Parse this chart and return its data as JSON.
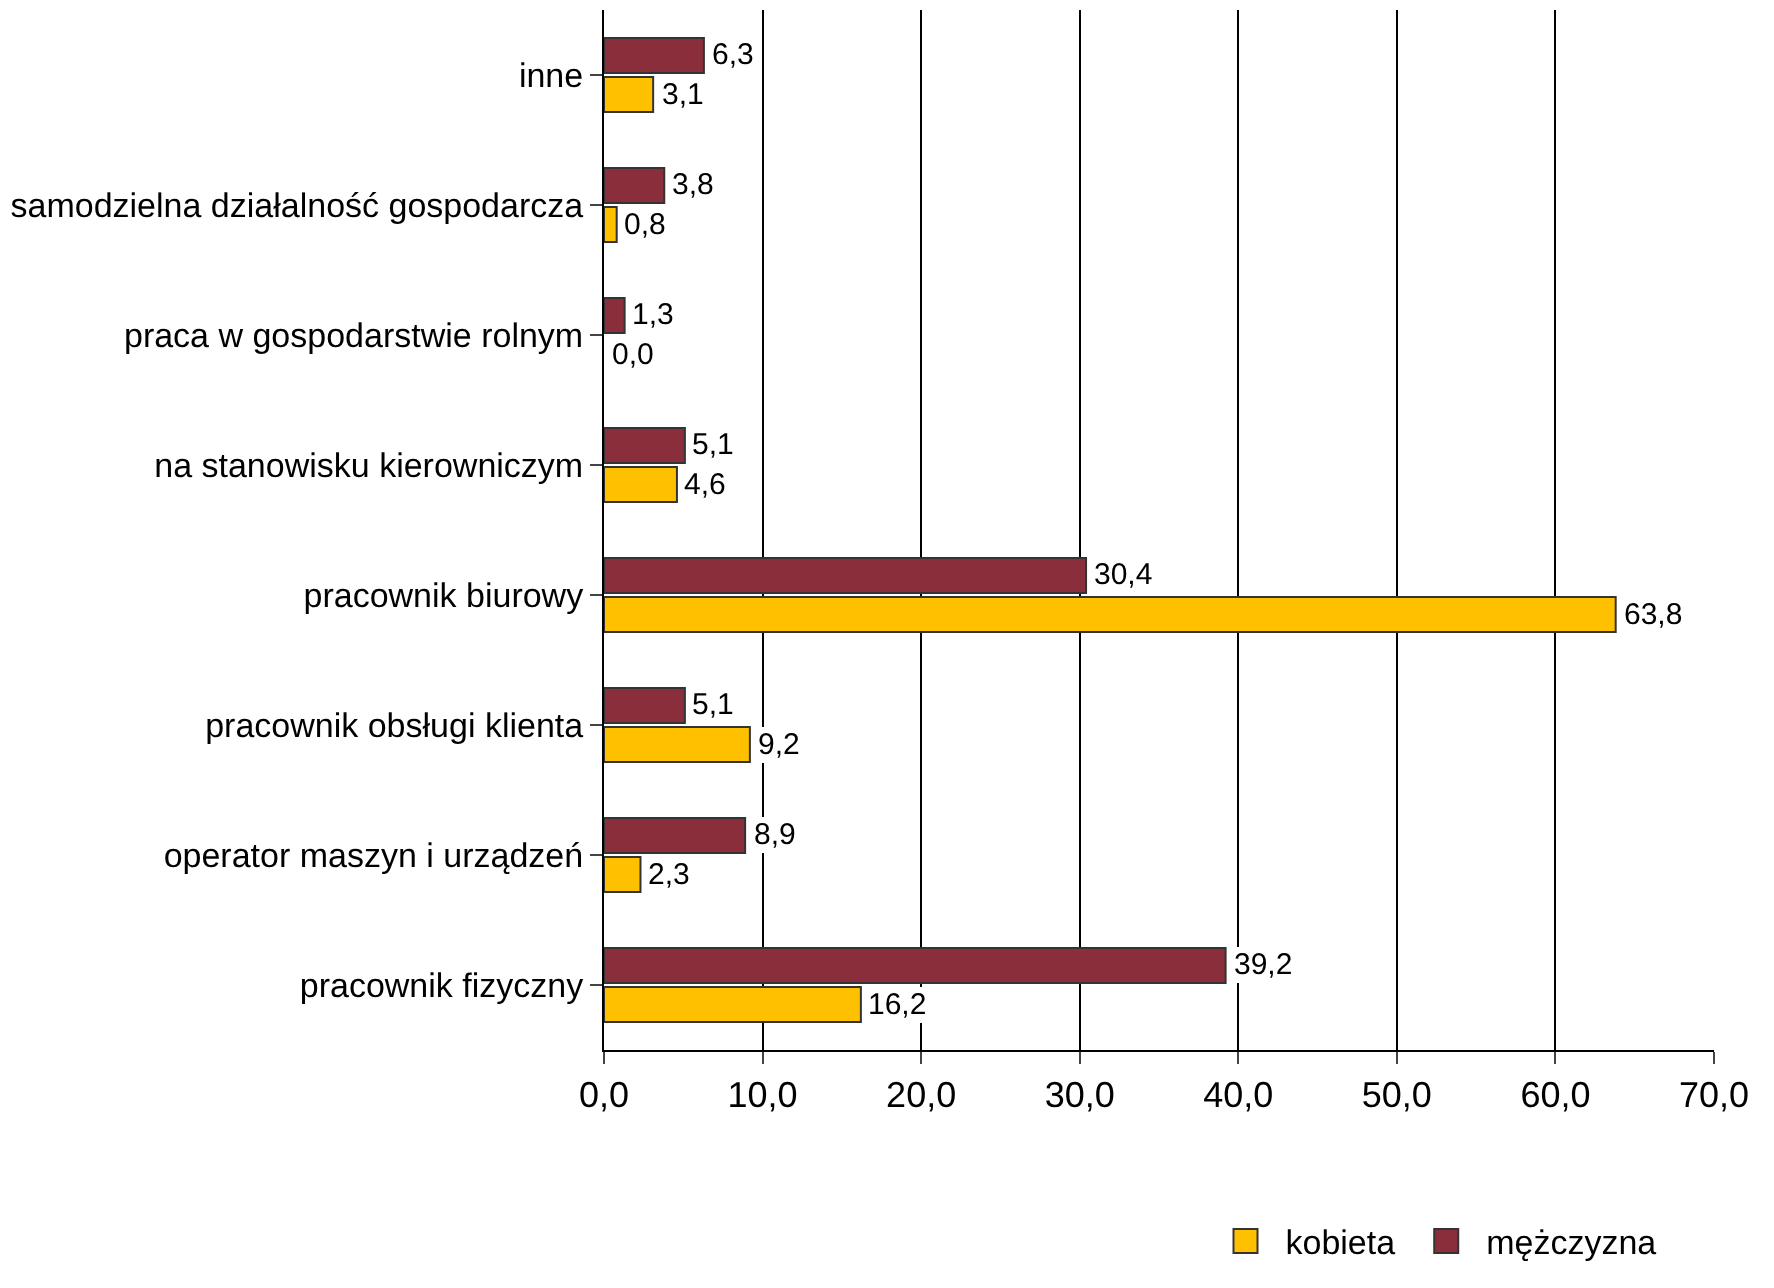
{
  "chart_data": {
    "type": "bar",
    "orientation": "horizontal",
    "categories": [
      "inne",
      "samodzielna działalność gospodarcza",
      "praca w gospodarstwie rolnym",
      "na stanowisku kierowniczym",
      "pracownik biurowy",
      "pracownik obsługi klienta",
      "operator maszyn i urządzeń",
      "pracownik fizyczny"
    ],
    "series": [
      {
        "name": "mężczyzna",
        "color": "#8b2e3b",
        "values": [
          6.3,
          3.8,
          1.3,
          5.1,
          30.4,
          5.1,
          8.9,
          39.2
        ],
        "value_labels": [
          "6,3",
          "3,8",
          "1,3",
          "5,1",
          "30,4",
          "5,1",
          "8,9",
          "39,2"
        ]
      },
      {
        "name": "kobieta",
        "color": "#ffc000",
        "values": [
          3.1,
          0.8,
          0.0,
          4.6,
          63.8,
          9.2,
          2.3,
          16.2
        ],
        "value_labels": [
          "3,1",
          "0,8",
          "0,0",
          "4,6",
          "63,8",
          "9,2",
          "2,3",
          "16,2"
        ]
      }
    ],
    "xlim": [
      0,
      70
    ],
    "xticks": [
      {
        "value": 0,
        "label": "0,0"
      },
      {
        "value": 10,
        "label": "10,0"
      },
      {
        "value": 20,
        "label": "20,0"
      },
      {
        "value": 30,
        "label": "30,0"
      },
      {
        "value": 40,
        "label": "40,0"
      },
      {
        "value": 50,
        "label": "50,0"
      },
      {
        "value": 60,
        "label": "60,0"
      },
      {
        "value": 70,
        "label": "70,0"
      }
    ],
    "grid": "x",
    "legend": "bottom"
  }
}
